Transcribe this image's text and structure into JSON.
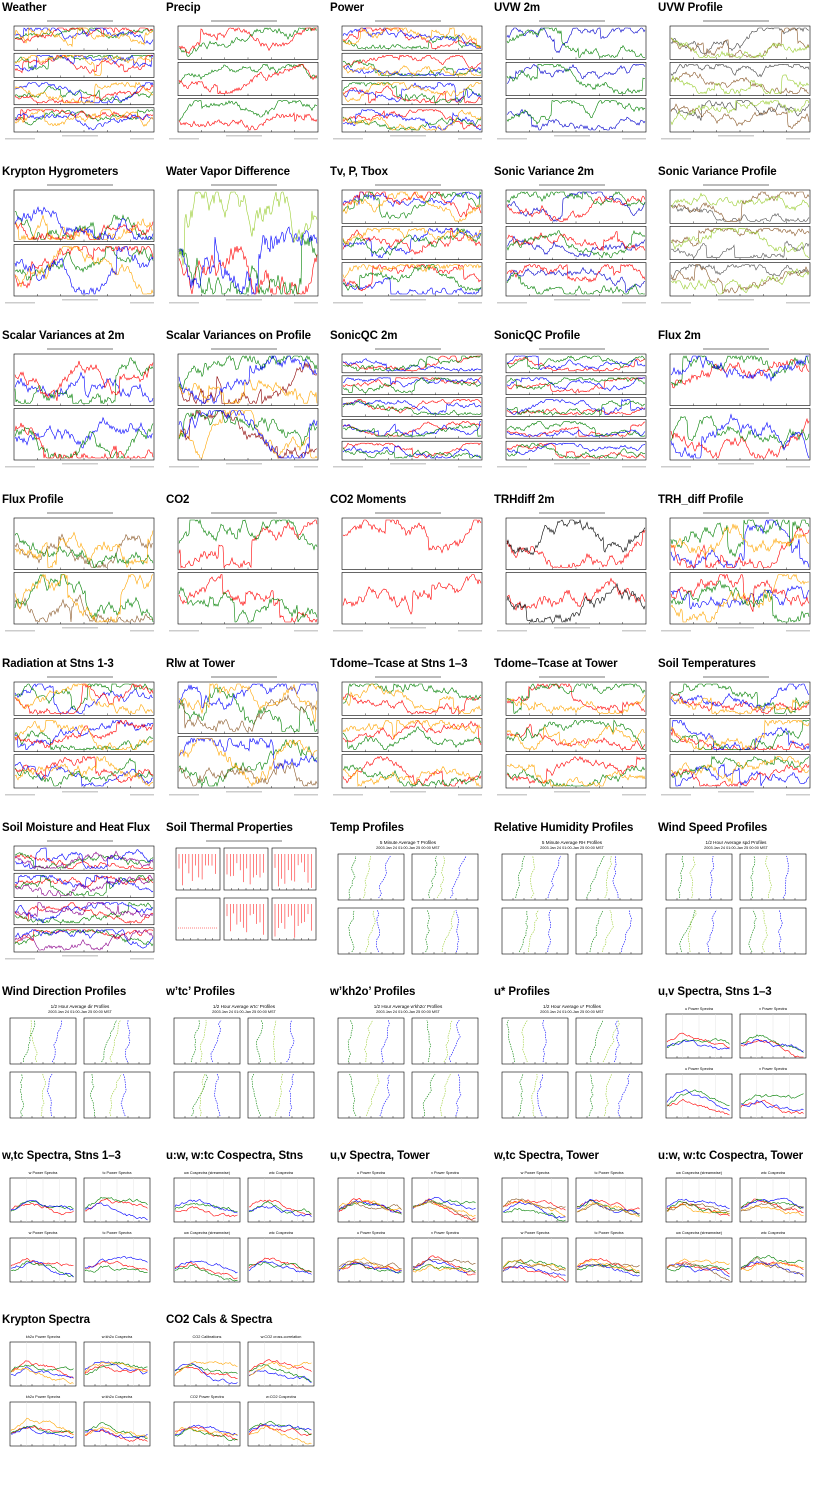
{
  "thumbnails": [
    {
      "title": "Weather",
      "kind": "ts",
      "panels": 4,
      "colors": [
        "#008000",
        "#ff0000",
        "#0000ff",
        "#ffa500"
      ]
    },
    {
      "title": "Precip",
      "kind": "ts",
      "panels": 3,
      "colors": [
        "#008000",
        "#ff0000"
      ]
    },
    {
      "title": "Power",
      "kind": "ts",
      "panels": 4,
      "colors": [
        "#ff0000",
        "#008000",
        "#0000ff",
        "#ffa500"
      ]
    },
    {
      "title": "UVW 2m",
      "kind": "ts",
      "panels": 3,
      "colors": [
        "#0000cc",
        "#008000"
      ]
    },
    {
      "title": "UVW Profile",
      "kind": "ts",
      "panels": 3,
      "colors": [
        "#444444",
        "#8b5a2b",
        "#9acd32"
      ]
    },
    {
      "title": "Krypton Hygrometers",
      "kind": "ts",
      "panels": 2,
      "colors": [
        "#008000",
        "#ff0000",
        "#ffa500",
        "#0000ff"
      ]
    },
    {
      "title": "Water Vapor Difference",
      "kind": "ts",
      "panels": 1,
      "colors": [
        "#ff0000",
        "#008000",
        "#0000ff",
        "#9acd32"
      ]
    },
    {
      "title": "Tv, P, Tbox",
      "kind": "ts",
      "panels": 3,
      "colors": [
        "#0000ff",
        "#ff0000",
        "#008000",
        "#ffa500"
      ]
    },
    {
      "title": "Sonic Variance 2m",
      "kind": "ts",
      "panels": 3,
      "colors": [
        "#0000cc",
        "#ff0000",
        "#008000"
      ]
    },
    {
      "title": "Sonic Variance Profile",
      "kind": "ts",
      "panels": 3,
      "colors": [
        "#555555",
        "#8b5a2b",
        "#9acd32"
      ]
    },
    {
      "title": "Scalar Variances at 2m",
      "kind": "ts",
      "panels": 2,
      "colors": [
        "#0000ff",
        "#008000",
        "#ff0000"
      ]
    },
    {
      "title": "Scalar Variances on Profile",
      "kind": "ts",
      "panels": 2,
      "colors": [
        "#8b0000",
        "#ffa500",
        "#008000",
        "#0000ff"
      ]
    },
    {
      "title": "SonicQC 2m",
      "kind": "ts",
      "panels": 5,
      "colors": [
        "#ff0000",
        "#0000ff",
        "#008000"
      ]
    },
    {
      "title": "SonicQC Profile",
      "kind": "ts",
      "panels": 5,
      "colors": [
        "#ff0000",
        "#0000ff",
        "#008000"
      ]
    },
    {
      "title": "Flux 2m",
      "kind": "ts",
      "panels": 2,
      "colors": [
        "#ff0000",
        "#008000",
        "#0000ff"
      ]
    },
    {
      "title": "Flux Profile",
      "kind": "ts",
      "panels": 2,
      "colors": [
        "#8b5a2b",
        "#008000",
        "#ffa500"
      ]
    },
    {
      "title": "CO2",
      "kind": "ts",
      "panels": 2,
      "colors": [
        "#ff0000",
        "#008000"
      ]
    },
    {
      "title": "CO2 Moments",
      "kind": "ts",
      "panels": 2,
      "colors": [
        "#ff0000"
      ]
    },
    {
      "title": "TRHdiff 2m",
      "kind": "ts",
      "panels": 2,
      "colors": [
        "#ff0000",
        "#000000"
      ]
    },
    {
      "title": "TRH_diff Profile",
      "kind": "ts",
      "panels": 2,
      "colors": [
        "#0000ff",
        "#ff0000",
        "#008000",
        "#ffa500"
      ]
    },
    {
      "title": "Radiation at Stns 1-3",
      "kind": "ts",
      "panels": 3,
      "colors": [
        "#0000ff",
        "#008000",
        "#ff0000",
        "#ffa500"
      ]
    },
    {
      "title": "Rlw at Tower",
      "kind": "ts",
      "panels": 2,
      "colors": [
        "#008000",
        "#8b5a2b",
        "#0000ff",
        "#ffa500"
      ]
    },
    {
      "title": "Tdome–Tcase at Stns 1–3",
      "kind": "ts",
      "panels": 3,
      "colors": [
        "#ff0000",
        "#008000",
        "#ffa500"
      ]
    },
    {
      "title": "Tdome–Tcase at Tower",
      "kind": "ts",
      "panels": 3,
      "colors": [
        "#ff0000",
        "#008000",
        "#ffa500"
      ]
    },
    {
      "title": "Soil Temperatures",
      "kind": "ts",
      "panels": 3,
      "colors": [
        "#ff0000",
        "#008000",
        "#0000ff",
        "#ffa500"
      ]
    },
    {
      "title": "Soil Moisture and Heat Flux",
      "kind": "ts",
      "panels": 4,
      "colors": [
        "#ff0000",
        "#008000",
        "#0000ff",
        "#8b008b"
      ]
    },
    {
      "title": "Soil Thermal Properties",
      "kind": "soil",
      "panels": 6,
      "colors": [
        "#ff0000"
      ]
    },
    {
      "title": "Temp Profiles",
      "kind": "prof",
      "panels": 4,
      "colors": [
        "#008000",
        "#9acd32",
        "#0000ff"
      ],
      "heading": "5 Minute Average T Profiles",
      "sub": "2003 Jan 24 01:00-Jan 25 00:00 MST"
    },
    {
      "title": "Relative Humidity Profiles",
      "kind": "prof",
      "panels": 4,
      "colors": [
        "#008000",
        "#9acd32",
        "#0000ff"
      ],
      "heading": "5 Minute Average RH Profiles",
      "sub": "2003 Jan 24 01:00-Jan 25 00:00 MST"
    },
    {
      "title": "Wind Speed Profiles",
      "kind": "prof",
      "panels": 4,
      "colors": [
        "#008000",
        "#9acd32",
        "#0000ff"
      ],
      "heading": "1/2 Hour Average spd Profiles",
      "sub": "2003 Jan 24 01:00-Jan 25 00:00 MST"
    },
    {
      "title": "Wind Direction Profiles",
      "kind": "prof",
      "panels": 4,
      "colors": [
        "#008000",
        "#9acd32",
        "#0000ff"
      ],
      "heading": "1/2 Hour Average dir Profiles",
      "sub": "2003 Jan 24 01:00-Jan 25 00:00 MST"
    },
    {
      "title": "w’tc’ Profiles",
      "kind": "prof",
      "panels": 4,
      "colors": [
        "#008000",
        "#9acd32",
        "#0000ff"
      ],
      "heading": "1/2 Hour Average w'tc' Profiles",
      "sub": "2003 Jan 24 01:00-Jan 25 00:00 MST"
    },
    {
      "title": "w’kh2o’ Profiles",
      "kind": "prof",
      "panels": 4,
      "colors": [
        "#008000",
        "#9acd32",
        "#0000ff"
      ],
      "heading": "1/2 Hour Average w'kh2o' Profiles",
      "sub": "2003 Jan 24 01:00-Jan 25 00:00 MST"
    },
    {
      "title": "u* Profiles",
      "kind": "prof",
      "panels": 4,
      "colors": [
        "#008000",
        "#9acd32",
        "#0000ff"
      ],
      "heading": "1/2 Hour Average u* Profiles",
      "sub": "2003 Jan 24 01:00-Jan 25 00:00 MST"
    },
    {
      "title": "u,v Spectra, Stns 1–3",
      "kind": "spec",
      "panels": 4,
      "colors": [
        "#ff0000",
        "#008000",
        "#0000ff"
      ],
      "heads": [
        "u Power Spectra",
        "v Power Spectra",
        "u Power Spectra",
        "v Power Spectra"
      ]
    },
    {
      "title": "w,tc Spectra, Stns 1–3",
      "kind": "spec",
      "panels": 4,
      "colors": [
        "#ff0000",
        "#008000",
        "#0000ff"
      ],
      "heads": [
        "w Power Spectra",
        "tc Power Spectra",
        "w Power Spectra",
        "tc Power Spectra"
      ]
    },
    {
      "title": "u:w, w:tc Cospectra, Stns",
      "kind": "spec",
      "panels": 4,
      "colors": [
        "#ff0000",
        "#008000",
        "#0000ff"
      ],
      "heads": [
        "uw Cospectra (streamwise)",
        "wtc Cospectra",
        "uw Cospectra (streamwise)",
        "wtc Cospectra"
      ]
    },
    {
      "title": "u,v Spectra, Tower",
      "kind": "spec",
      "panels": 4,
      "colors": [
        "#ff0000",
        "#008000",
        "#0000ff",
        "#ffa500",
        "#8b5a2b"
      ],
      "heads": [
        "u Power Spectra",
        "v Power Spectra",
        "u Power Spectra",
        "v Power Spectra"
      ]
    },
    {
      "title": "w,tc Spectra, Tower",
      "kind": "spec",
      "panels": 4,
      "colors": [
        "#ff0000",
        "#008000",
        "#0000ff",
        "#ffa500",
        "#8b5a2b"
      ],
      "heads": [
        "w Power Spectra",
        "tc Power Spectra",
        "w Power Spectra",
        "tc Power Spectra"
      ]
    },
    {
      "title": "u:w, w:tc Cospectra, Tower",
      "kind": "spec",
      "panels": 4,
      "colors": [
        "#ff0000",
        "#008000",
        "#0000ff",
        "#ffa500",
        "#8b5a2b"
      ],
      "heads": [
        "uw Cospectra (streamwise)",
        "wtc Cospectra",
        "uw Cospectra (streamwise)",
        "wtc Cospectra"
      ]
    },
    {
      "title": "Krypton Spectra",
      "kind": "spec",
      "panels": 4,
      "colors": [
        "#ff0000",
        "#008000",
        "#0000ff",
        "#ffa500"
      ],
      "heads": [
        "kh2o Power Spectra",
        "w:kh2o Cospectra",
        "kh2o Power Spectra",
        "w:kh2o Cospectra"
      ]
    },
    {
      "title": "CO2 Cals & Spectra",
      "kind": "spec",
      "panels": 4,
      "colors": [
        "#ff0000",
        "#008000",
        "#0000ff",
        "#ffa500"
      ],
      "heads": [
        "CO2 Calibrations",
        "w:CO2 cross-correlation",
        "CO2 Power Spectra",
        "w:CO2 Cospectra"
      ]
    }
  ]
}
